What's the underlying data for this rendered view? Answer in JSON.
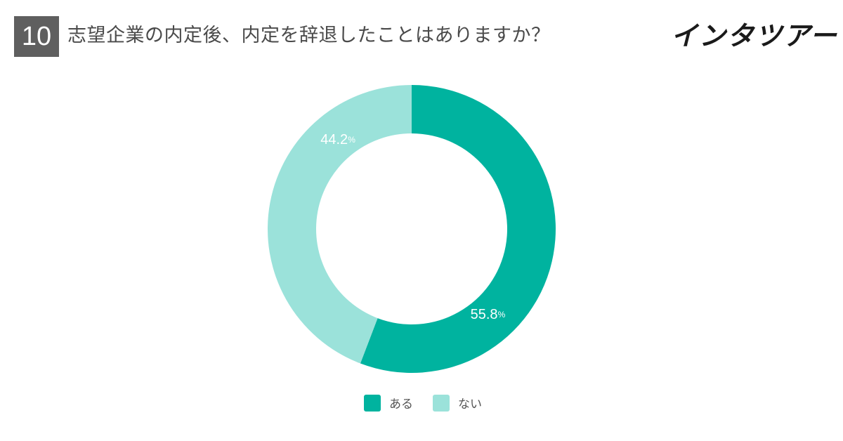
{
  "header": {
    "question_number": "10",
    "question": "志望企業の内定後、内定を辞退したことはありますか？",
    "logo_text": "インタツアー"
  },
  "colors": {
    "accent": "#00b39f",
    "light": "#9be2da",
    "header_bg": "#5f5f5f"
  },
  "chart_data": {
    "type": "pie",
    "donut": true,
    "title": "志望企業の内定後、内定を辞退したことはありますか？",
    "slices": [
      {
        "label": "ある",
        "value": 55.8,
        "display": "55.8",
        "unit": "%",
        "color": "#00b39f"
      },
      {
        "label": "ない",
        "value": 44.2,
        "display": "44.2",
        "unit": "%",
        "color": "#9be2da"
      }
    ],
    "legend_position": "bottom"
  }
}
